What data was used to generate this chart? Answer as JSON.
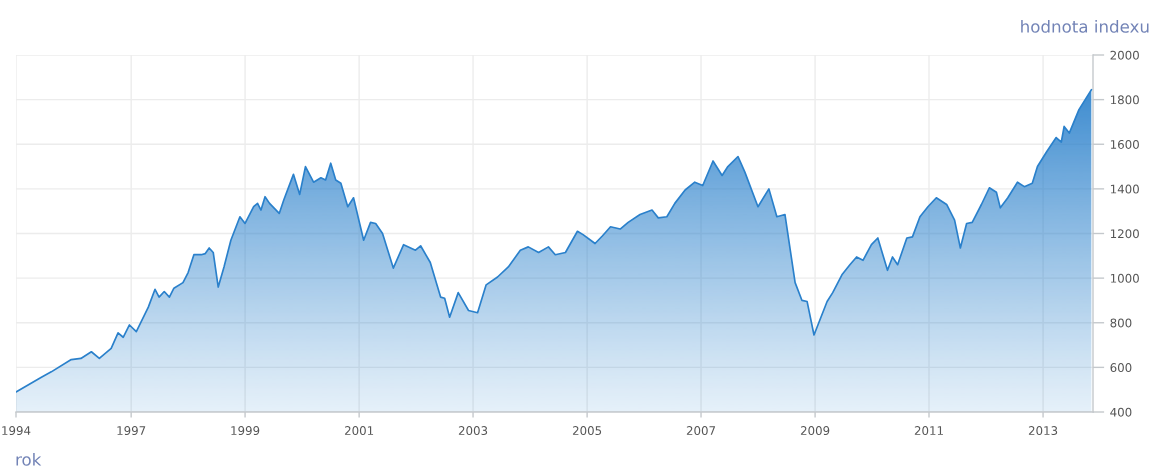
{
  "chart_data": {
    "type": "area",
    "xlabel": "rok",
    "ylabel": "hodnota indexu",
    "x": [
      "1994-12-25",
      "1995-06-03",
      "1995-08-08",
      "1995-12-14",
      "1996-02-14",
      "1996-04-21",
      "1996-06-11",
      "1996-08-26",
      "1996-10-09",
      "1996-11-11",
      "1996-12-21",
      "1997-02-03",
      "1997-04-21",
      "1997-06-03",
      "1997-06-29",
      "1997-08-01",
      "1997-09-03",
      "1997-10-02",
      "1997-11-29",
      "1998-01-01",
      "1998-02-07",
      "1998-03-26",
      "1998-04-21",
      "1998-05-16",
      "1998-06-11",
      "1998-07-13",
      "1998-08-19",
      "1998-10-02",
      "1998-11-29",
      "1999-01-01",
      "1999-02-25",
      "1999-03-22",
      "1999-04-13",
      "1999-05-09",
      "1999-06-07",
      "1999-08-08",
      "1999-09-06",
      "1999-11-07",
      "1999-12-17",
      "2000-01-23",
      "2000-03-15",
      "2000-05-01",
      "2000-05-31",
      "2000-07-03",
      "2000-08-04",
      "2000-09-06",
      "2000-10-20",
      "2000-11-26",
      "2001-01-30",
      "2001-03-15",
      "2001-04-17",
      "2001-05-31",
      "2001-08-08",
      "2001-10-13",
      "2001-12-28",
      "2002-01-30",
      "2002-04-02",
      "2002-06-07",
      "2002-07-03",
      "2002-08-04",
      "2002-09-28",
      "2002-12-03",
      "2003-01-30",
      "2003-03-26",
      "2003-06-07",
      "2003-08-15",
      "2003-10-31",
      "2003-12-21",
      "2004-02-25",
      "2004-04-28",
      "2004-06-11",
      "2004-08-15",
      "2004-10-31",
      "2004-12-06",
      "2005-02-21",
      "2005-04-10",
      "2005-05-31",
      "2005-08-01",
      "2005-09-21",
      "2005-12-06",
      "2006-02-21",
      "2006-04-02",
      "2006-05-27",
      "2006-07-17",
      "2006-09-21",
      "2006-11-22",
      "2007-01-12",
      "2007-03-19",
      "2007-05-16",
      "2007-06-22",
      "2007-08-26",
      "2007-10-09",
      "2008-01-01",
      "2008-03-11",
      "2008-05-01",
      "2008-06-22",
      "2008-08-26",
      "2008-10-09",
      "2008-11-11",
      "2008-12-25",
      "2009-03-19",
      "2009-04-24",
      "2009-06-22",
      "2009-08-12",
      "2009-09-24",
      "2009-11-04",
      "2009-12-28",
      "2010-02-07",
      "2010-04-10",
      "2010-05-12",
      "2010-06-14",
      "2010-08-12",
      "2010-09-17",
      "2010-11-04",
      "2010-12-25",
      "2011-02-17",
      "2011-04-24",
      "2011-06-14",
      "2011-07-21",
      "2011-08-30",
      "2011-10-05",
      "2011-12-03",
      "2012-01-23",
      "2012-03-08",
      "2012-04-02",
      "2012-05-20",
      "2012-07-21",
      "2012-09-03",
      "2012-10-24",
      "2012-11-26",
      "2013-01-23",
      "2013-03-26",
      "2013-04-28",
      "2013-05-16",
      "2013-06-18",
      "2013-08-19",
      "2013-11-07"
    ],
    "series": [
      {
        "color": "#2a80cb",
        "values": [
          490,
          555,
          580,
          635,
          640,
          670,
          640,
          685,
          755,
          735,
          790,
          760,
          870,
          950,
          915,
          940,
          915,
          955,
          980,
          1025,
          1105,
          1105,
          1110,
          1135,
          1115,
          960,
          1050,
          1170,
          1275,
          1245,
          1320,
          1335,
          1305,
          1365,
          1335,
          1290,
          1350,
          1465,
          1375,
          1500,
          1430,
          1450,
          1440,
          1515,
          1440,
          1425,
          1320,
          1360,
          1170,
          1250,
          1245,
          1200,
          1045,
          1150,
          1125,
          1145,
          1070,
          915,
          910,
          825,
          935,
          855,
          845,
          970,
          1005,
          1050,
          1125,
          1140,
          1115,
          1140,
          1105,
          1115,
          1210,
          1195,
          1155,
          1190,
          1230,
          1220,
          1250,
          1285,
          1305,
          1270,
          1275,
          1335,
          1395,
          1430,
          1415,
          1525,
          1460,
          1500,
          1545,
          1475,
          1320,
          1400,
          1275,
          1285,
          980,
          900,
          895,
          745,
          895,
          935,
          1015,
          1060,
          1095,
          1080,
          1150,
          1180,
          1035,
          1095,
          1060,
          1180,
          1185,
          1275,
          1320,
          1360,
          1330,
          1260,
          1135,
          1245,
          1250,
          1330,
          1405,
          1385,
          1315,
          1360,
          1430,
          1410,
          1425,
          1500,
          1565,
          1630,
          1610,
          1680,
          1650,
          1755,
          1845
        ]
      }
    ],
    "xlim": [
      "1994-12-25",
      "2013-11-17"
    ],
    "xticks": [
      {
        "value": "1994-12-25",
        "label": "1994"
      },
      "1997",
      "1999",
      "2001",
      "2003",
      "2005",
      "2007",
      "2009",
      "2011",
      "2013"
    ],
    "ylim": [
      400,
      2000
    ],
    "yticks": [
      400,
      600,
      800,
      1000,
      1200,
      1400,
      1600,
      1800,
      2000
    ],
    "grid": true
  }
}
